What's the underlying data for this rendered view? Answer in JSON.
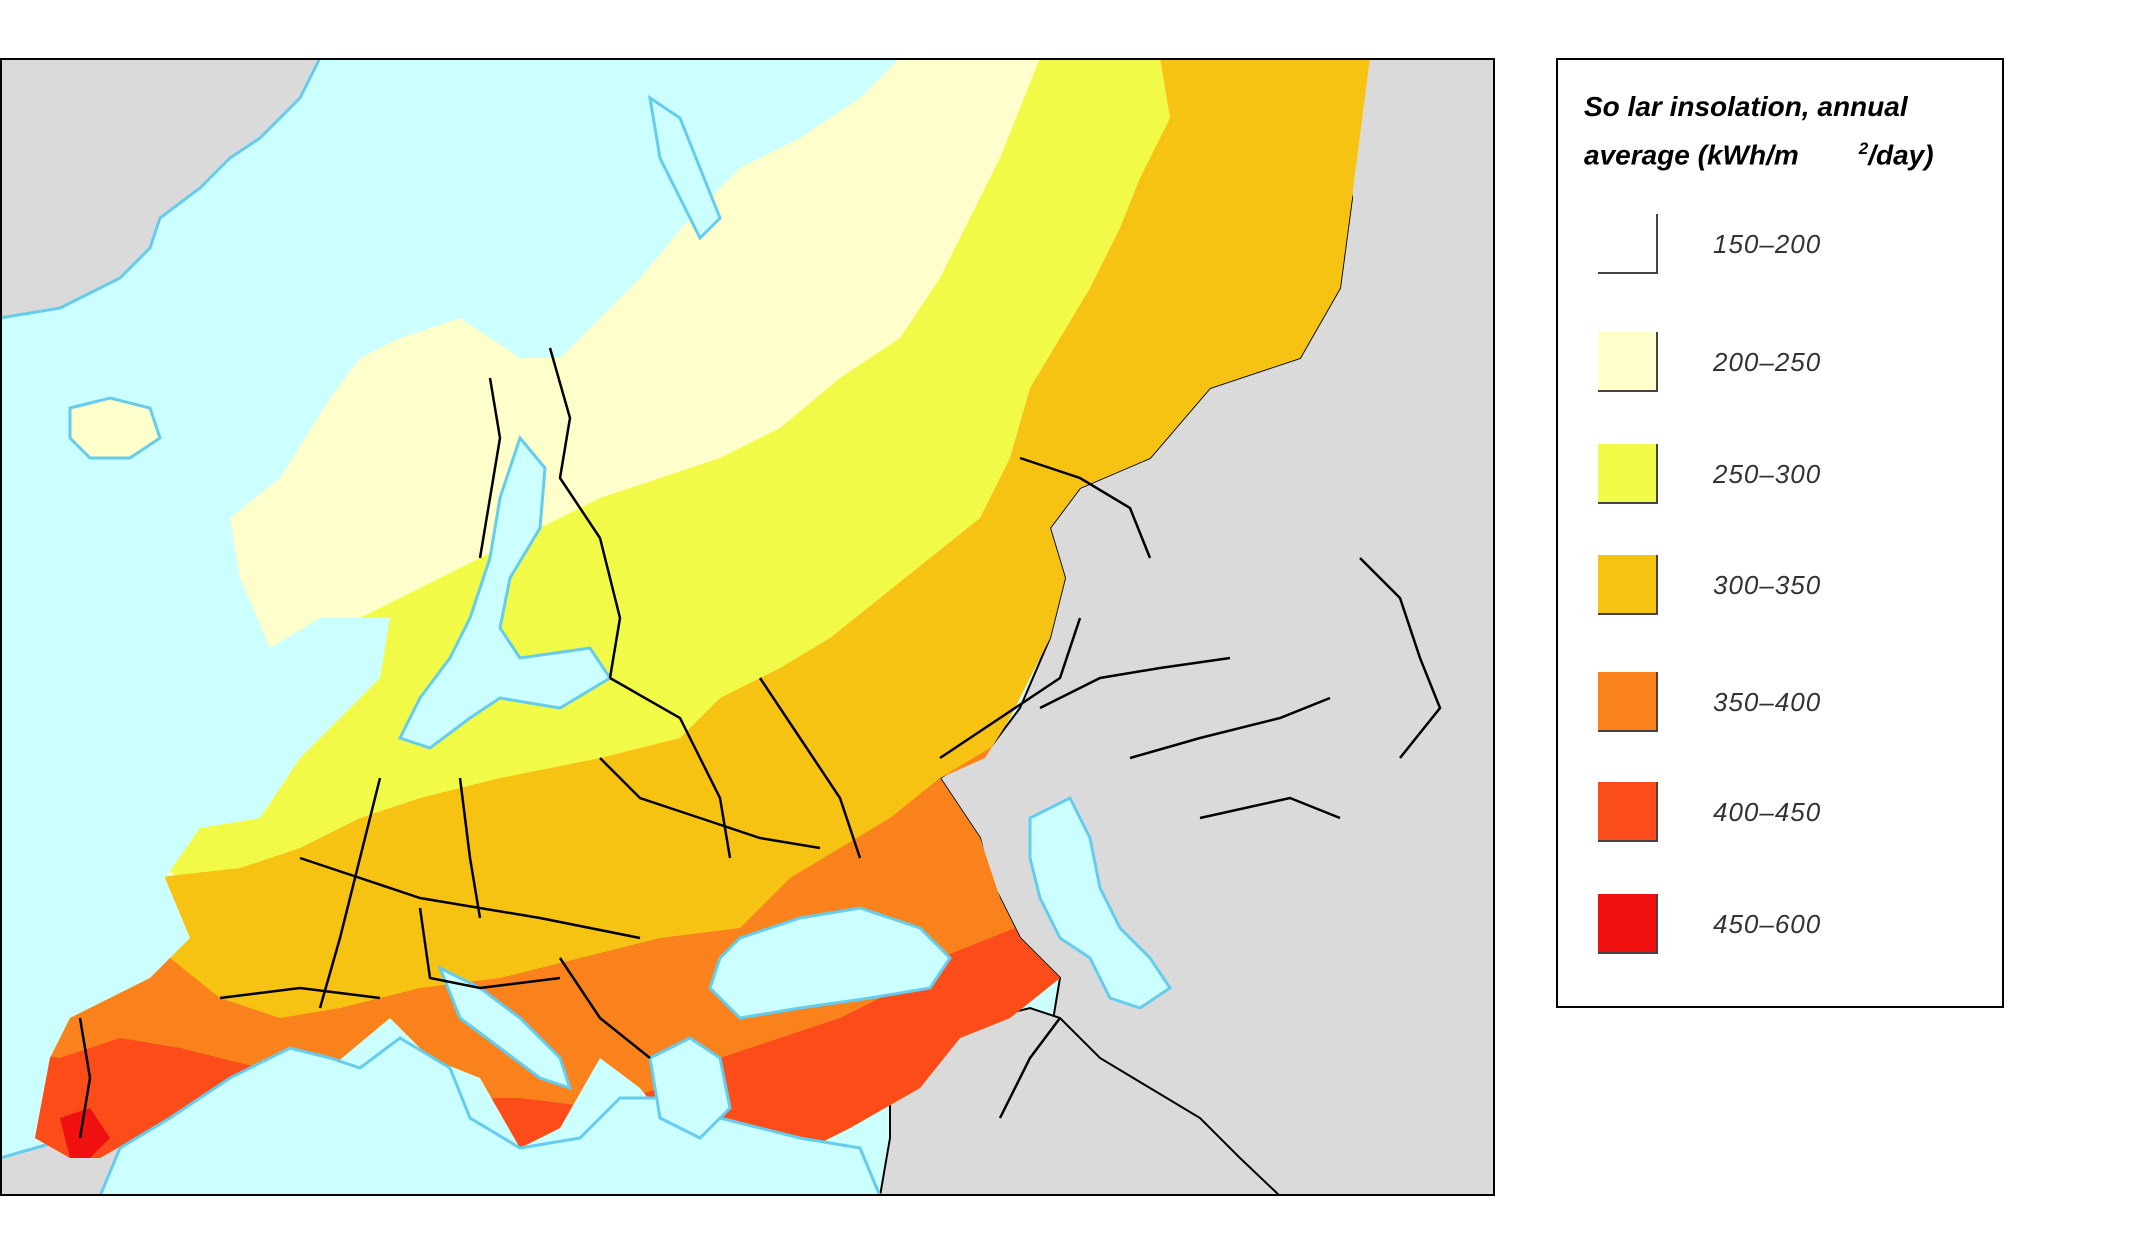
{
  "legend": {
    "title_line1": "So lar insolation, annual",
    "title_line2_pre": "average (kWh/m",
    "title_sup": "2",
    "title_line2_post": "/day)",
    "items": [
      {
        "label": "150–200",
        "color": "#ffffff"
      },
      {
        "label": "200–250",
        "color": "#ffffcc"
      },
      {
        "label": "250–300",
        "color": "#f2fa48"
      },
      {
        "label": "300–350",
        "color": "#f7c313"
      },
      {
        "label": "350–400",
        "color": "#f9821d"
      },
      {
        "label": "400–450",
        "color": "#fb4c1a"
      },
      {
        "label": "450–600",
        "color": "#f01010"
      }
    ]
  },
  "map": {
    "sea_color": "#ccffff",
    "coast_color": "#66ccee",
    "non_covered_land_color": "#dadada",
    "border_color": "#000000"
  }
}
